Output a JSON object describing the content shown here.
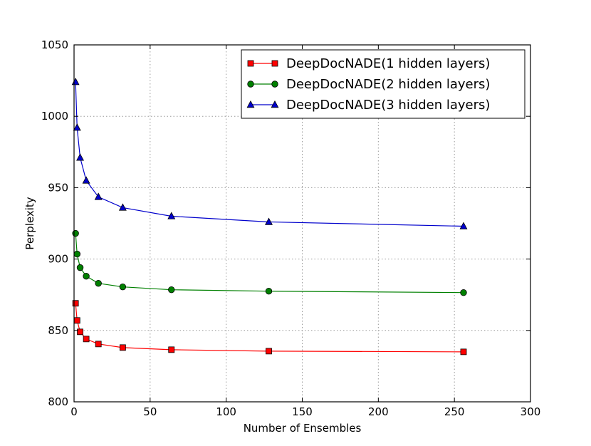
{
  "chart_data": {
    "type": "line",
    "title": "",
    "xlabel": "Number of Ensembles",
    "ylabel": "Perplexity",
    "xlim": [
      0,
      300
    ],
    "ylim": [
      800,
      1050
    ],
    "xticks": [
      0,
      50,
      100,
      150,
      200,
      250,
      300
    ],
    "yticks": [
      800,
      850,
      900,
      950,
      1000,
      1050
    ],
    "grid": true,
    "legend_position": "top-right",
    "x": [
      1,
      2,
      4,
      8,
      16,
      32,
      64,
      128,
      256
    ],
    "series": [
      {
        "name": "DeepDocNADE(1 hidden layers)",
        "color": "#ff0000",
        "marker": "square",
        "values": [
          869,
          857,
          849,
          844,
          840.5,
          838,
          836.5,
          835.5,
          835
        ]
      },
      {
        "name": "DeepDocNADE(2 hidden layers)",
        "color": "#008000",
        "marker": "circle",
        "values": [
          918,
          903.5,
          894,
          888,
          883,
          880.5,
          878.5,
          877.5,
          876.5
        ]
      },
      {
        "name": "DeepDocNADE(3 hidden layers)",
        "color": "#0000cc",
        "marker": "triangle",
        "values": [
          1024,
          992,
          971,
          955,
          943.5,
          936,
          930,
          926,
          923
        ]
      }
    ]
  }
}
